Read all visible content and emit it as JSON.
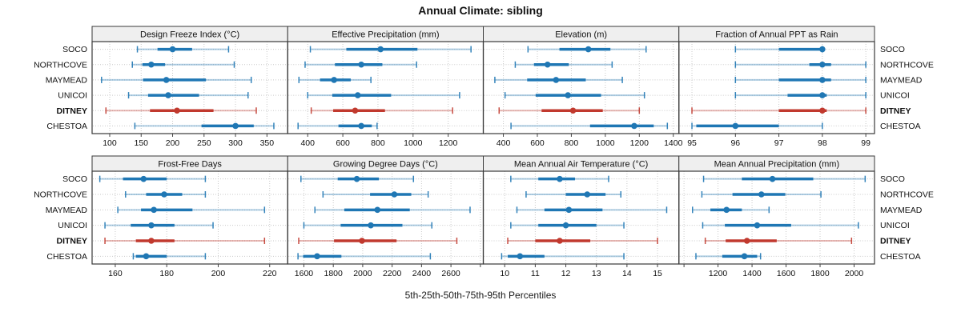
{
  "chart": {
    "title": "Annual Climate: sibling",
    "footer": "5th-25th-50th-75th-95th Percentiles",
    "colors": {
      "site_default": "#1f77b4",
      "site_highlight": "#c1392e",
      "grid": "#c9c9c9",
      "strip_fill": "#efefef",
      "border": "#3a3a3a",
      "text": "#111111"
    }
  },
  "chart_data": {
    "type": "trellis-percentile-dotplot",
    "layout": {
      "rows": 2,
      "cols": 4,
      "legend": "none",
      "grid": "dotted"
    },
    "percentile_labels": [
      "5th",
      "25th",
      "50th",
      "75th",
      "95th"
    ],
    "sites": [
      {
        "name": "SOCO",
        "highlight": false
      },
      {
        "name": "NORTHCOVE",
        "highlight": false
      },
      {
        "name": "MAYMEAD",
        "highlight": false
      },
      {
        "name": "UNICOI",
        "highlight": false
      },
      {
        "name": "DITNEY",
        "highlight": true
      },
      {
        "name": "CHESTOA",
        "highlight": false
      }
    ],
    "panels": [
      {
        "title": "Design Freeze Index (°C)",
        "row": 0,
        "col": 0,
        "xlim": [
          72,
          383
        ],
        "ticks": [
          100,
          150,
          200,
          250,
          300,
          350
        ],
        "tick_labels": [
          "100",
          "150",
          "200",
          "250",
          "300",
          "350"
        ],
        "series": [
          [
            144,
            176,
            200,
            231,
            289
          ],
          [
            136,
            152,
            166,
            188,
            298
          ],
          [
            87,
            153,
            190,
            253,
            325
          ],
          [
            130,
            161,
            193,
            242,
            320
          ],
          [
            94,
            164,
            207,
            265,
            333
          ],
          [
            140,
            246,
            300,
            329,
            361
          ]
        ]
      },
      {
        "title": "Effective Precipitation (mm)",
        "row": 0,
        "col": 1,
        "xlim": [
          286,
          1400
        ],
        "ticks": [
          400,
          600,
          800,
          1000,
          1200
        ],
        "tick_labels": [
          "400",
          "600",
          "800",
          "1000",
          "1200"
        ],
        "series": [
          [
            415,
            620,
            815,
            1025,
            1330
          ],
          [
            385,
            555,
            705,
            825,
            1020
          ],
          [
            350,
            470,
            550,
            645,
            760
          ],
          [
            400,
            540,
            685,
            875,
            1265
          ],
          [
            420,
            545,
            670,
            840,
            1225
          ],
          [
            345,
            575,
            705,
            765,
            795
          ]
        ]
      },
      {
        "title": "Elevation (m)",
        "row": 0,
        "col": 2,
        "xlim": [
          282,
          1433
        ],
        "ticks": [
          400,
          600,
          800,
          1000,
          1200,
          1400
        ],
        "tick_labels": [
          "400",
          "600",
          "800",
          "1000",
          "1200",
          "1400"
        ],
        "series": [
          [
            545,
            730,
            900,
            1030,
            1240
          ],
          [
            470,
            580,
            660,
            785,
            1040
          ],
          [
            350,
            540,
            710,
            885,
            1100
          ],
          [
            410,
            590,
            780,
            975,
            1230
          ],
          [
            375,
            625,
            810,
            985,
            1200
          ],
          [
            445,
            910,
            1170,
            1285,
            1365
          ]
        ]
      },
      {
        "title": "Fraction of Annual PPT as Rain",
        "row": 0,
        "col": 3,
        "xlim": [
          94.7,
          99.2
        ],
        "ticks": [
          95,
          96,
          97,
          98,
          99
        ],
        "tick_labels": [
          "95",
          "96",
          "97",
          "98",
          "99"
        ],
        "series": [
          [
            96,
            97,
            98,
            98,
            98
          ],
          [
            96,
            97.7,
            98,
            98.2,
            99
          ],
          [
            96,
            97,
            98,
            98.2,
            99
          ],
          [
            96,
            97.2,
            98,
            98.1,
            99
          ],
          [
            95,
            97,
            98,
            98.1,
            99
          ],
          [
            95,
            95.1,
            96,
            97,
            98
          ]
        ]
      },
      {
        "title": "Frost-Free Days",
        "row": 1,
        "col": 0,
        "xlim": [
          151,
          227
        ],
        "ticks": [
          160,
          180,
          200,
          220
        ],
        "tick_labels": [
          "160",
          "180",
          "200",
          "220"
        ],
        "series": [
          [
            154,
            163,
            171,
            180,
            195
          ],
          [
            164,
            172,
            179,
            186,
            195
          ],
          [
            161,
            170,
            175,
            190,
            218
          ],
          [
            156,
            166,
            174,
            183,
            198
          ],
          [
            156,
            168,
            174,
            183,
            218
          ],
          [
            167,
            168,
            172,
            180,
            195
          ]
        ]
      },
      {
        "title": "Growing Degree Days (°C)",
        "row": 1,
        "col": 1,
        "xlim": [
          1490,
          2820
        ],
        "ticks": [
          1600,
          1800,
          2000,
          2200,
          2400,
          2600,
          2800
        ],
        "tick_labels": [
          "1600",
          "1800",
          "2000",
          "2200",
          "2400",
          "2600",
          ""
        ],
        "series": [
          [
            1580,
            1830,
            1960,
            2110,
            2345
          ],
          [
            1730,
            2050,
            2215,
            2330,
            2445
          ],
          [
            1675,
            1875,
            2100,
            2320,
            2730
          ],
          [
            1600,
            1850,
            2055,
            2270,
            2470
          ],
          [
            1565,
            1805,
            1995,
            2230,
            2640
          ],
          [
            1560,
            1595,
            1690,
            1855,
            2460
          ]
        ]
      },
      {
        "title": "Mean Annual Air Temperature (°C)",
        "row": 1,
        "col": 2,
        "xlim": [
          9.3,
          15.7
        ],
        "ticks": [
          10,
          11,
          12,
          13,
          14,
          15
        ],
        "tick_labels": [
          "10",
          "11",
          "12",
          "13",
          "14",
          "15"
        ],
        "series": [
          [
            10.2,
            11.1,
            11.8,
            12.3,
            13.4
          ],
          [
            10.7,
            12.0,
            12.7,
            13.3,
            13.8
          ],
          [
            10.4,
            11.3,
            12.1,
            13.2,
            15.3
          ],
          [
            10.2,
            11.1,
            12.0,
            13.0,
            13.9
          ],
          [
            10.1,
            11.0,
            11.8,
            12.8,
            15.0
          ],
          [
            9.9,
            10.1,
            10.5,
            11.3,
            13.9
          ]
        ]
      },
      {
        "title": "Mean Annual Precipitation (mm)",
        "row": 1,
        "col": 3,
        "xlim": [
          970,
          2120
        ],
        "ticks": [
          1000,
          1200,
          1400,
          1600,
          1800,
          2000
        ],
        "tick_labels": [
          "",
          "1200",
          "1400",
          "1600",
          "1800",
          "2000"
        ],
        "series": [
          [
            1115,
            1340,
            1520,
            1760,
            2065
          ],
          [
            1105,
            1285,
            1455,
            1595,
            1805
          ],
          [
            1050,
            1155,
            1250,
            1340,
            1500
          ],
          [
            1110,
            1240,
            1430,
            1630,
            2025
          ],
          [
            1125,
            1245,
            1370,
            1545,
            1985
          ],
          [
            1070,
            1225,
            1355,
            1430,
            1450
          ]
        ]
      }
    ]
  }
}
